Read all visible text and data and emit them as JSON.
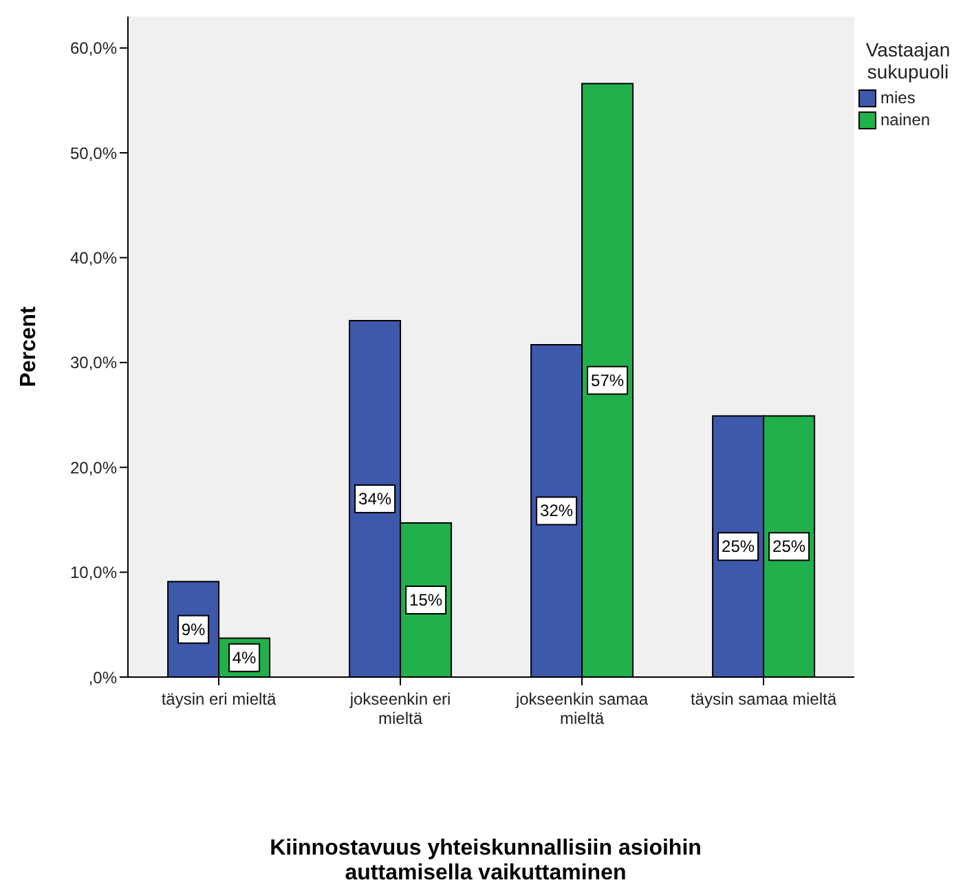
{
  "chart_data": {
    "type": "bar",
    "xlabel": "Kiinnostavuus yhteiskunnallisiin asioihin auttamisella vaikuttaminen",
    "ylabel": "Percent",
    "legend_title": "Vastaajan sukupuoli",
    "legend": "right",
    "grid": false,
    "categories": [
      "täysin eri mieltä",
      "jokseenkin eri mieltä",
      "jokseenkin samaa mieltä",
      "täysin samaa mieltä"
    ],
    "ylim": [
      0,
      63
    ],
    "yticks": [
      {
        "value": 0,
        "label": ",0%"
      },
      {
        "value": 10,
        "label": "10,0%"
      },
      {
        "value": 20,
        "label": "20,0%"
      },
      {
        "value": 30,
        "label": "30,0%"
      },
      {
        "value": 40,
        "label": "40,0%"
      },
      {
        "value": 50,
        "label": "50,0%"
      },
      {
        "value": 60,
        "label": "60,0%"
      }
    ],
    "series": [
      {
        "name": "mies",
        "color": "#3e58ac",
        "values": [
          9.1,
          34.0,
          31.7,
          24.9
        ],
        "value_labels": [
          "9%",
          "34%",
          "32%",
          "25%"
        ]
      },
      {
        "name": "nainen",
        "color": "#21b04b",
        "values": [
          3.7,
          14.7,
          56.6,
          24.9
        ],
        "value_labels": [
          "4%",
          "15%",
          "57%",
          "25%"
        ]
      }
    ]
  }
}
